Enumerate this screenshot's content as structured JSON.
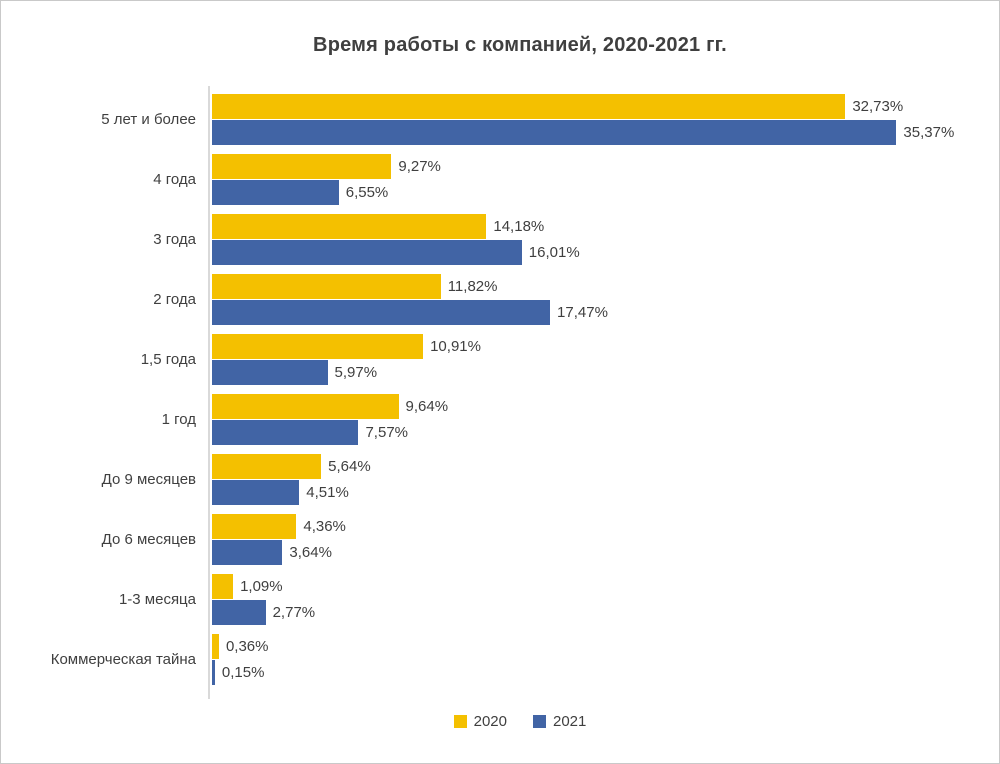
{
  "chart_data": {
    "type": "bar",
    "orientation": "horizontal",
    "title": "Время работы с компанией, 2020-2021 гг.",
    "categories": [
      "5 лет и более",
      "4 года",
      "3 года",
      "2 года",
      "1,5 года",
      "1 год",
      "До 9 месяцев",
      "До 6 месяцев",
      "1-3 месяца",
      "Коммерческая тайна"
    ],
    "series": [
      {
        "name": "2020",
        "color": "#f4c000",
        "values": [
          32.73,
          9.27,
          14.18,
          11.82,
          10.91,
          9.64,
          5.64,
          4.36,
          1.09,
          0.36
        ],
        "labels": [
          "32,73%",
          "9,27%",
          "14,18%",
          "11,82%",
          "10,91%",
          "9,64%",
          "5,64%",
          "4,36%",
          "1,09%",
          "0,36%"
        ]
      },
      {
        "name": "2021",
        "color": "#4164a5",
        "values": [
          35.37,
          6.55,
          16.01,
          17.47,
          5.97,
          7.57,
          4.51,
          3.64,
          2.77,
          0.15
        ],
        "labels": [
          "35,37%",
          "6,55%",
          "16,01%",
          "17,47%",
          "5,97%",
          "7,57%",
          "4,51%",
          "3,64%",
          "2,77%",
          "0,15%"
        ]
      }
    ],
    "xlim": [
      0,
      40
    ],
    "value_suffix": "%",
    "decimal_separator": ",",
    "legend_position": "bottom",
    "grid": false,
    "axis_color": "#d9d9d9",
    "text_color": "#3f3f3f"
  }
}
